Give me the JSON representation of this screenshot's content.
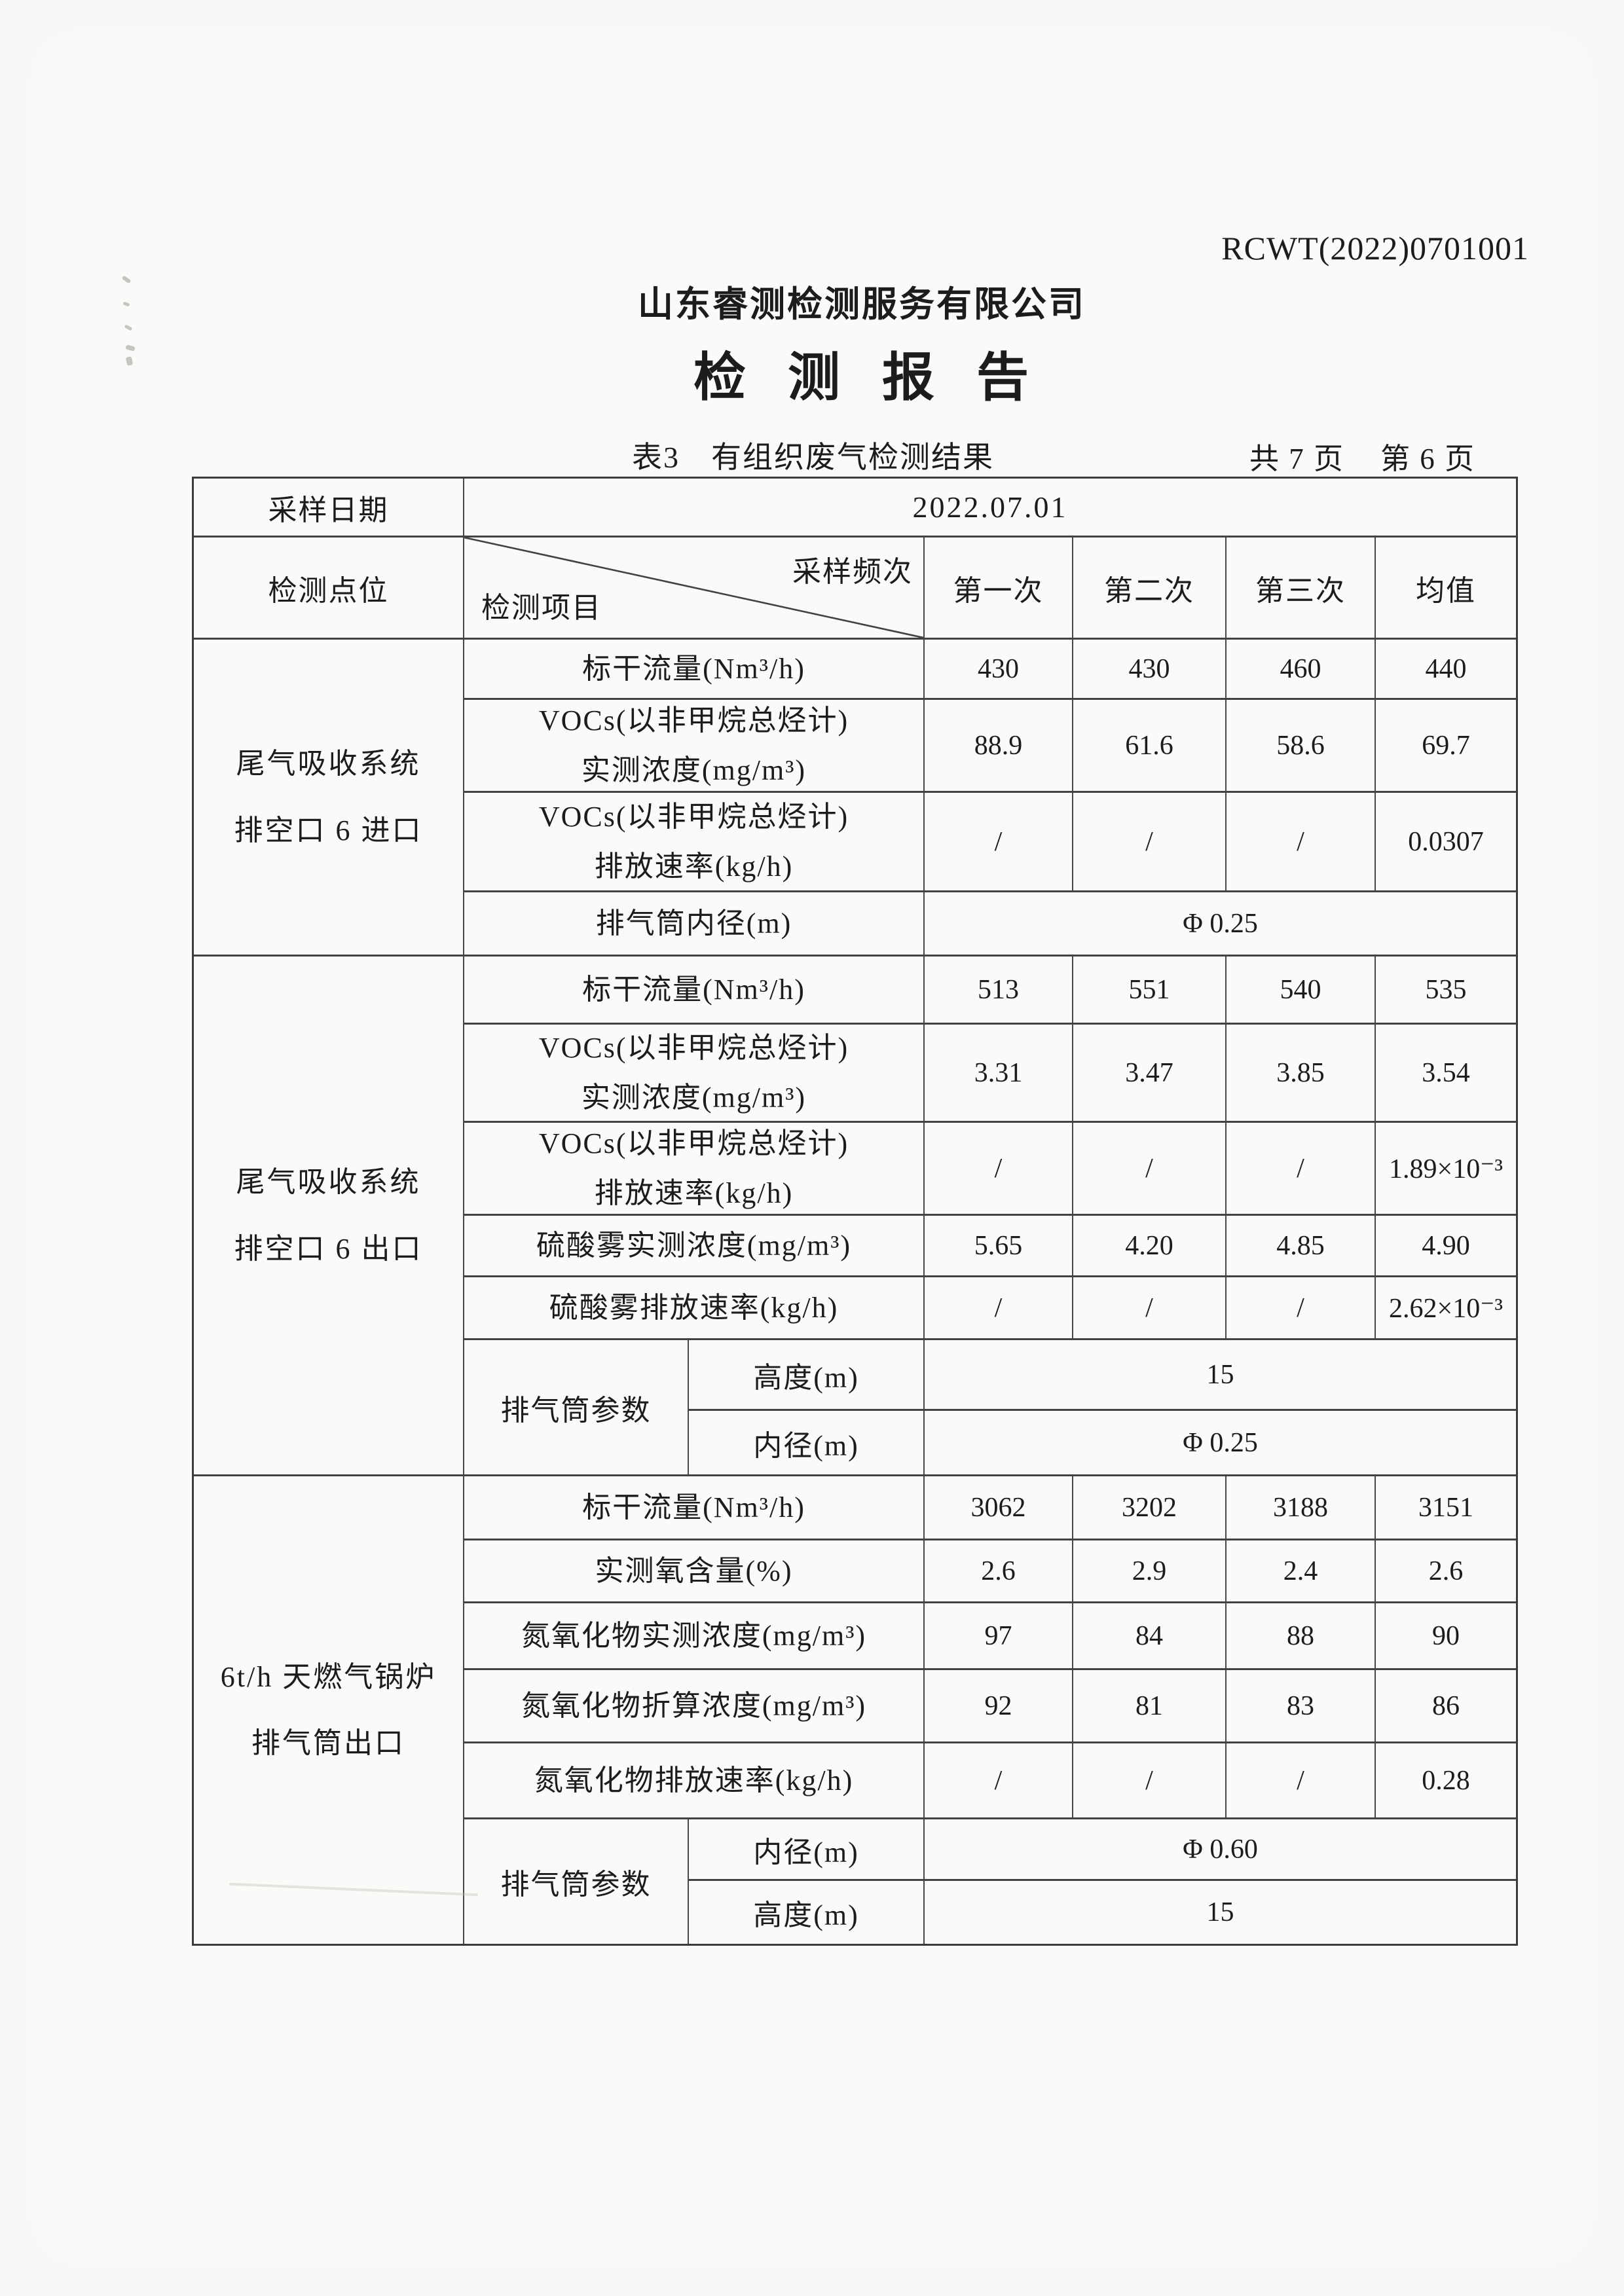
{
  "page": {
    "doc_number": "RCWT(2022)0701001",
    "company_name": "山东睿测检测服务有限公司",
    "report_title": "检测报告",
    "table_label": "表3",
    "table_title": "有组织废气检测结果",
    "page_total": "共 7 页",
    "page_current": "第 6 页"
  },
  "table": {
    "sample_date_label": "采样日期",
    "sample_date_value": "2022.07.01",
    "header": {
      "point_label": "检测点位",
      "diag_top": "采样频次",
      "diag_bottom": "检测项目",
      "cols": [
        "第一次",
        "第二次",
        "第三次",
        "均值"
      ]
    },
    "sections": [
      {
        "point": [
          "尾气吸收系统",
          "排空口 6 进口"
        ],
        "rows": [
          {
            "label": [
              "标干流量(Nm³/h)"
            ],
            "values": [
              "430",
              "430",
              "460",
              "440"
            ]
          },
          {
            "label": [
              "VOCs(以非甲烷总烃计)",
              "实测浓度(mg/m³)"
            ],
            "values": [
              "88.9",
              "61.6",
              "58.6",
              "69.7"
            ]
          },
          {
            "label": [
              "VOCs(以非甲烷总烃计)",
              "排放速率(kg/h)"
            ],
            "values": [
              "/",
              "/",
              "/",
              "0.0307"
            ]
          },
          {
            "label": [
              "排气筒内径(m)"
            ],
            "merged_value": "Φ 0.25"
          }
        ]
      },
      {
        "point": [
          "尾气吸收系统",
          "排空口 6 出口"
        ],
        "rows": [
          {
            "label": [
              "标干流量(Nm³/h)"
            ],
            "values": [
              "513",
              "551",
              "540",
              "535"
            ]
          },
          {
            "label": [
              "VOCs(以非甲烷总烃计)",
              "实测浓度(mg/m³)"
            ],
            "values": [
              "3.31",
              "3.47",
              "3.85",
              "3.54"
            ]
          },
          {
            "label": [
              "VOCs(以非甲烷总烃计)",
              "排放速率(kg/h)"
            ],
            "values": [
              "/",
              "/",
              "/",
              "1.89×10⁻³"
            ]
          },
          {
            "label": [
              "硫酸雾实测浓度(mg/m³)"
            ],
            "values": [
              "5.65",
              "4.20",
              "4.85",
              "4.90"
            ]
          },
          {
            "label": [
              "硫酸雾排放速率(kg/h)"
            ],
            "values": [
              "/",
              "/",
              "/",
              "2.62×10⁻³"
            ]
          },
          {
            "param_group": "排气筒参数",
            "sub_rows": [
              {
                "label": "高度(m)",
                "value": "15"
              },
              {
                "label": "内径(m)",
                "value": "Φ 0.25"
              }
            ]
          }
        ]
      },
      {
        "point": [
          "6t/h 天燃气锅炉",
          "排气筒出口"
        ],
        "rows": [
          {
            "label": [
              "标干流量(Nm³/h)"
            ],
            "values": [
              "3062",
              "3202",
              "3188",
              "3151"
            ]
          },
          {
            "label": [
              "实测氧含量(%)"
            ],
            "values": [
              "2.6",
              "2.9",
              "2.4",
              "2.6"
            ]
          },
          {
            "label": [
              "氮氧化物实测浓度(mg/m³)"
            ],
            "values": [
              "97",
              "84",
              "88",
              "90"
            ]
          },
          {
            "label": [
              "氮氧化物折算浓度(mg/m³)"
            ],
            "values": [
              "92",
              "81",
              "83",
              "86"
            ]
          },
          {
            "label": [
              "氮氧化物排放速率(kg/h)"
            ],
            "values": [
              "/",
              "/",
              "/",
              "0.28"
            ]
          },
          {
            "param_group": "排气筒参数",
            "sub_rows": [
              {
                "label": "内径(m)",
                "value": "Φ 0.60"
              },
              {
                "label": "高度(m)",
                "value": "15"
              }
            ]
          }
        ]
      }
    ]
  }
}
